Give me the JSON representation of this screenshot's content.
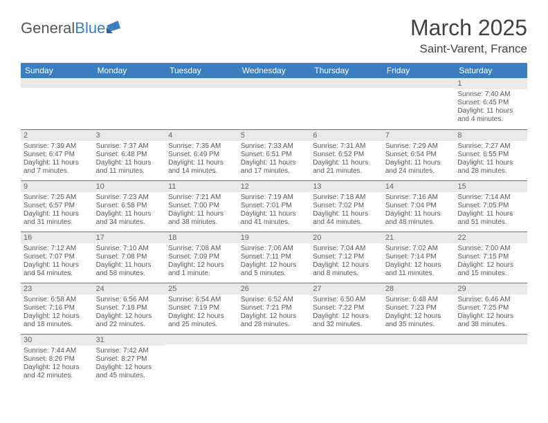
{
  "logo": {
    "part1": "General",
    "part2": "Blue"
  },
  "title": "March 2025",
  "location": "Saint-Varent, France",
  "weekday_headers": [
    "Sunday",
    "Monday",
    "Tuesday",
    "Wednesday",
    "Thursday",
    "Friday",
    "Saturday"
  ],
  "colors": {
    "header_bg": "#3a7ebf",
    "header_text": "#ffffff",
    "daynum_bg": "#e9e9e9",
    "border": "#3a7ebf",
    "text": "#555555"
  },
  "weeks": [
    [
      {
        "n": "",
        "lines": []
      },
      {
        "n": "",
        "lines": []
      },
      {
        "n": "",
        "lines": []
      },
      {
        "n": "",
        "lines": []
      },
      {
        "n": "",
        "lines": []
      },
      {
        "n": "",
        "lines": []
      },
      {
        "n": "1",
        "lines": [
          "Sunrise: 7:40 AM",
          "Sunset: 6:45 PM",
          "Daylight: 11 hours",
          "and 4 minutes."
        ]
      }
    ],
    [
      {
        "n": "2",
        "lines": [
          "Sunrise: 7:39 AM",
          "Sunset: 6:47 PM",
          "Daylight: 11 hours",
          "and 7 minutes."
        ]
      },
      {
        "n": "3",
        "lines": [
          "Sunrise: 7:37 AM",
          "Sunset: 6:48 PM",
          "Daylight: 11 hours",
          "and 11 minutes."
        ]
      },
      {
        "n": "4",
        "lines": [
          "Sunrise: 7:35 AM",
          "Sunset: 6:49 PM",
          "Daylight: 11 hours",
          "and 14 minutes."
        ]
      },
      {
        "n": "5",
        "lines": [
          "Sunrise: 7:33 AM",
          "Sunset: 6:51 PM",
          "Daylight: 11 hours",
          "and 17 minutes."
        ]
      },
      {
        "n": "6",
        "lines": [
          "Sunrise: 7:31 AM",
          "Sunset: 6:52 PM",
          "Daylight: 11 hours",
          "and 21 minutes."
        ]
      },
      {
        "n": "7",
        "lines": [
          "Sunrise: 7:29 AM",
          "Sunset: 6:54 PM",
          "Daylight: 11 hours",
          "and 24 minutes."
        ]
      },
      {
        "n": "8",
        "lines": [
          "Sunrise: 7:27 AM",
          "Sunset: 6:55 PM",
          "Daylight: 11 hours",
          "and 28 minutes."
        ]
      }
    ],
    [
      {
        "n": "9",
        "lines": [
          "Sunrise: 7:25 AM",
          "Sunset: 6:57 PM",
          "Daylight: 11 hours",
          "and 31 minutes."
        ]
      },
      {
        "n": "10",
        "lines": [
          "Sunrise: 7:23 AM",
          "Sunset: 6:58 PM",
          "Daylight: 11 hours",
          "and 34 minutes."
        ]
      },
      {
        "n": "11",
        "lines": [
          "Sunrise: 7:21 AM",
          "Sunset: 7:00 PM",
          "Daylight: 11 hours",
          "and 38 minutes."
        ]
      },
      {
        "n": "12",
        "lines": [
          "Sunrise: 7:19 AM",
          "Sunset: 7:01 PM",
          "Daylight: 11 hours",
          "and 41 minutes."
        ]
      },
      {
        "n": "13",
        "lines": [
          "Sunrise: 7:18 AM",
          "Sunset: 7:02 PM",
          "Daylight: 11 hours",
          "and 44 minutes."
        ]
      },
      {
        "n": "14",
        "lines": [
          "Sunrise: 7:16 AM",
          "Sunset: 7:04 PM",
          "Daylight: 11 hours",
          "and 48 minutes."
        ]
      },
      {
        "n": "15",
        "lines": [
          "Sunrise: 7:14 AM",
          "Sunset: 7:05 PM",
          "Daylight: 11 hours",
          "and 51 minutes."
        ]
      }
    ],
    [
      {
        "n": "16",
        "lines": [
          "Sunrise: 7:12 AM",
          "Sunset: 7:07 PM",
          "Daylight: 11 hours",
          "and 54 minutes."
        ]
      },
      {
        "n": "17",
        "lines": [
          "Sunrise: 7:10 AM",
          "Sunset: 7:08 PM",
          "Daylight: 11 hours",
          "and 58 minutes."
        ]
      },
      {
        "n": "18",
        "lines": [
          "Sunrise: 7:08 AM",
          "Sunset: 7:09 PM",
          "Daylight: 12 hours",
          "and 1 minute."
        ]
      },
      {
        "n": "19",
        "lines": [
          "Sunrise: 7:06 AM",
          "Sunset: 7:11 PM",
          "Daylight: 12 hours",
          "and 5 minutes."
        ]
      },
      {
        "n": "20",
        "lines": [
          "Sunrise: 7:04 AM",
          "Sunset: 7:12 PM",
          "Daylight: 12 hours",
          "and 8 minutes."
        ]
      },
      {
        "n": "21",
        "lines": [
          "Sunrise: 7:02 AM",
          "Sunset: 7:14 PM",
          "Daylight: 12 hours",
          "and 11 minutes."
        ]
      },
      {
        "n": "22",
        "lines": [
          "Sunrise: 7:00 AM",
          "Sunset: 7:15 PM",
          "Daylight: 12 hours",
          "and 15 minutes."
        ]
      }
    ],
    [
      {
        "n": "23",
        "lines": [
          "Sunrise: 6:58 AM",
          "Sunset: 7:16 PM",
          "Daylight: 12 hours",
          "and 18 minutes."
        ]
      },
      {
        "n": "24",
        "lines": [
          "Sunrise: 6:56 AM",
          "Sunset: 7:18 PM",
          "Daylight: 12 hours",
          "and 22 minutes."
        ]
      },
      {
        "n": "25",
        "lines": [
          "Sunrise: 6:54 AM",
          "Sunset: 7:19 PM",
          "Daylight: 12 hours",
          "and 25 minutes."
        ]
      },
      {
        "n": "26",
        "lines": [
          "Sunrise: 6:52 AM",
          "Sunset: 7:21 PM",
          "Daylight: 12 hours",
          "and 28 minutes."
        ]
      },
      {
        "n": "27",
        "lines": [
          "Sunrise: 6:50 AM",
          "Sunset: 7:22 PM",
          "Daylight: 12 hours",
          "and 32 minutes."
        ]
      },
      {
        "n": "28",
        "lines": [
          "Sunrise: 6:48 AM",
          "Sunset: 7:23 PM",
          "Daylight: 12 hours",
          "and 35 minutes."
        ]
      },
      {
        "n": "29",
        "lines": [
          "Sunrise: 6:46 AM",
          "Sunset: 7:25 PM",
          "Daylight: 12 hours",
          "and 38 minutes."
        ]
      }
    ],
    [
      {
        "n": "30",
        "lines": [
          "Sunrise: 7:44 AM",
          "Sunset: 8:26 PM",
          "Daylight: 12 hours",
          "and 42 minutes."
        ]
      },
      {
        "n": "31",
        "lines": [
          "Sunrise: 7:42 AM",
          "Sunset: 8:27 PM",
          "Daylight: 12 hours",
          "and 45 minutes."
        ]
      },
      {
        "n": "",
        "lines": []
      },
      {
        "n": "",
        "lines": []
      },
      {
        "n": "",
        "lines": []
      },
      {
        "n": "",
        "lines": []
      },
      {
        "n": "",
        "lines": []
      }
    ]
  ]
}
